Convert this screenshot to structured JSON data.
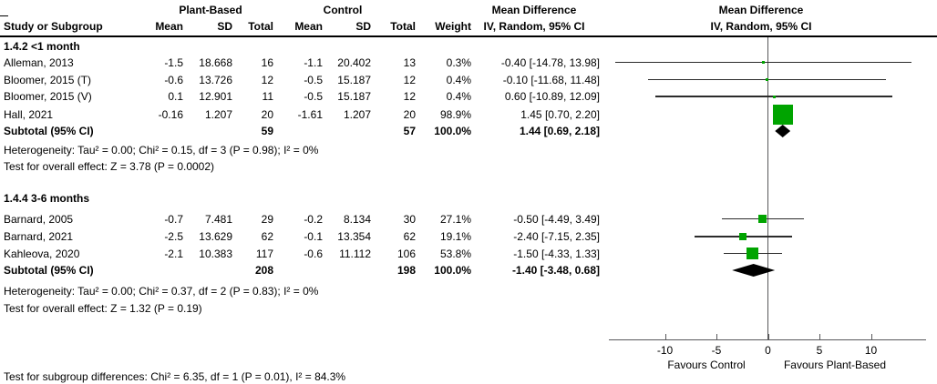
{
  "colors": {
    "square_green": "#00a400",
    "diamond_black": "#000000",
    "ci_line": "#2b2b2b",
    "axis_gray": "#58585a",
    "text": "#000000",
    "rule": "#000000"
  },
  "header": {
    "group1": "Plant-Based",
    "group2": "Control",
    "study_col": "Study or Subgroup",
    "mean_col_1": "Mean",
    "sd_col_1": "SD",
    "total_col_1": "Total",
    "mean_col_2": "Mean",
    "sd_col_2": "SD",
    "total_col_2": "Total",
    "weight_col": "Weight",
    "md_text_title": "Mean Difference",
    "md_text_sub": "IV, Random, 95% CI",
    "md_plot_title": "Mean Difference",
    "md_plot_sub": "IV, Random, 95% CI"
  },
  "chart_data": {
    "type": "scatter",
    "variant": "forest-plot",
    "xticks": [
      -10,
      -5,
      0,
      5,
      10
    ],
    "xtick_labels": [
      "-10",
      "-5",
      "0",
      "5",
      "10"
    ],
    "xlim": [
      -15.5,
      15.5
    ],
    "favours_left": "Favours Control",
    "favours_right": "Favours Plant-Based",
    "subgroups": [
      {
        "label": "1.4.2 <1 month",
        "studies": [
          {
            "name": "Alleman, 2013",
            "mean1": "-1.5",
            "sd1": "18.668",
            "total1": "16",
            "mean2": "-1.1",
            "sd2": "20.402",
            "total2": "13",
            "weight": "0.3%",
            "ci_text": "-0.40 [-14.78, 13.98]",
            "md": -0.4,
            "lo": -14.78,
            "hi": 13.98
          },
          {
            "name": "Bloomer, 2015 (T)",
            "mean1": "-0.6",
            "sd1": "13.726",
            "total1": "12",
            "mean2": "-0.5",
            "sd2": "15.187",
            "total2": "12",
            "weight": "0.4%",
            "ci_text": "-0.10 [-11.68, 11.48]",
            "md": -0.1,
            "lo": -11.68,
            "hi": 11.48
          },
          {
            "name": "Bloomer, 2015 (V)",
            "mean1": "0.1",
            "sd1": "12.901",
            "total1": "11",
            "mean2": "-0.5",
            "sd2": "15.187",
            "total2": "12",
            "weight": "0.4%",
            "ci_text": "0.60 [-10.89, 12.09]",
            "md": 0.6,
            "lo": -10.89,
            "hi": 12.09
          },
          {
            "name": "Hall, 2021",
            "mean1": "-0.16",
            "sd1": "1.207",
            "total1": "20",
            "mean2": "-1.61",
            "sd2": "1.207",
            "total2": "20",
            "weight": "98.9%",
            "ci_text": "1.45 [0.70, 2.20]",
            "md": 1.45,
            "lo": 0.7,
            "hi": 2.2
          }
        ],
        "subtotal": {
          "label": "Subtotal (95% CI)",
          "total1": "59",
          "total2": "57",
          "weight": "100.0%",
          "ci_text": "1.44 [0.69, 2.18]",
          "md": 1.44,
          "lo": 0.69,
          "hi": 2.18
        },
        "heterogeneity": "Heterogeneity: Tau² = 0.00; Chi² = 0.15, df = 3 (P = 0.98); I² = 0%",
        "overall_test": "Test for overall effect: Z = 3.78 (P = 0.0002)"
      },
      {
        "label": "1.4.4 3-6 months",
        "studies": [
          {
            "name": "Barnard, 2005",
            "mean1": "-0.7",
            "sd1": "7.481",
            "total1": "29",
            "mean2": "-0.2",
            "sd2": "8.134",
            "total2": "30",
            "weight": "27.1%",
            "ci_text": "-0.50 [-4.49, 3.49]",
            "md": -0.5,
            "lo": -4.49,
            "hi": 3.49
          },
          {
            "name": "Barnard, 2021",
            "mean1": "-2.5",
            "sd1": "13.629",
            "total1": "62",
            "mean2": "-0.1",
            "sd2": "13.354",
            "total2": "62",
            "weight": "19.1%",
            "ci_text": "-2.40 [-7.15, 2.35]",
            "md": -2.4,
            "lo": -7.15,
            "hi": 2.35
          },
          {
            "name": "Kahleova, 2020",
            "mean1": "-2.1",
            "sd1": "10.383",
            "total1": "117",
            "mean2": "-0.6",
            "sd2": "11.112",
            "total2": "106",
            "weight": "53.8%",
            "ci_text": "-1.50 [-4.33, 1.33]",
            "md": -1.5,
            "lo": -4.33,
            "hi": 1.33
          }
        ],
        "subtotal": {
          "label": "Subtotal (95% CI)",
          "total1": "208",
          "total2": "198",
          "weight": "100.0%",
          "ci_text": "-1.40 [-3.48, 0.68]",
          "md": -1.4,
          "lo": -3.48,
          "hi": 0.68
        },
        "heterogeneity": "Heterogeneity: Tau² = 0.00; Chi² = 0.37, df = 2 (P = 0.83); I² = 0%",
        "overall_test": "Test for overall effect: Z = 1.32 (P = 0.19)"
      }
    ]
  },
  "footer": {
    "subgroup_diff": "Test for subgroup differences: Chi² = 6.35, df = 1 (P = 0.01), I² = 84.3%"
  }
}
